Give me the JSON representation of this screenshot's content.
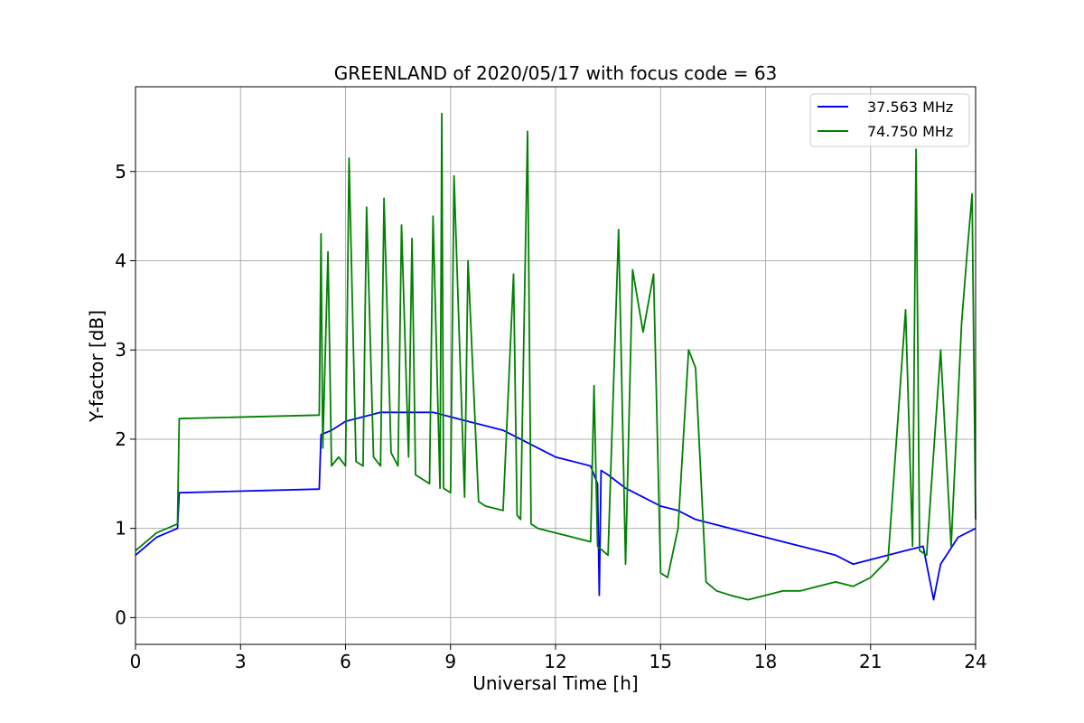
{
  "chart_data": {
    "type": "line",
    "title": "GREENLAND of 2020/05/17 with focus code = 63",
    "xlabel": "Universal Time [h]",
    "ylabel": "Y-factor [dB]",
    "xlim": [
      0,
      24
    ],
    "ylim": [
      -0.3,
      5.95
    ],
    "xticks": [
      0,
      3,
      6,
      9,
      12,
      15,
      18,
      21,
      24
    ],
    "yticks": [
      0,
      1,
      2,
      3,
      4,
      5
    ],
    "grid": true,
    "legend_position": "top-right",
    "series": [
      {
        "name": "37.563 MHz",
        "color": "#0000ff",
        "x": [
          0,
          0.3,
          0.6,
          0.9,
          1.2,
          1.25,
          5.25,
          5.3,
          5.6,
          6.0,
          6.5,
          7.0,
          7.5,
          8.0,
          8.5,
          9.0,
          9.5,
          10.0,
          10.5,
          11.0,
          11.5,
          12.0,
          12.5,
          13.0,
          13.2,
          13.25,
          13.3,
          13.5,
          14.0,
          14.5,
          15.0,
          15.5,
          16.0,
          16.5,
          17.0,
          17.5,
          18.0,
          18.5,
          19.0,
          19.5,
          20.0,
          20.5,
          21.0,
          21.5,
          22.0,
          22.5,
          22.8,
          23.0,
          23.5,
          24.0
        ],
        "y": [
          0.7,
          0.8,
          0.9,
          0.95,
          1.0,
          1.4,
          1.44,
          2.05,
          2.1,
          2.2,
          2.25,
          2.3,
          2.3,
          2.3,
          2.3,
          2.25,
          2.2,
          2.15,
          2.1,
          2.0,
          1.9,
          1.8,
          1.75,
          1.7,
          1.5,
          0.25,
          1.65,
          1.6,
          1.45,
          1.35,
          1.25,
          1.2,
          1.1,
          1.05,
          1.0,
          0.95,
          0.9,
          0.85,
          0.8,
          0.75,
          0.7,
          0.6,
          0.65,
          0.7,
          0.75,
          0.8,
          0.2,
          0.6,
          0.9,
          1.0
        ]
      },
      {
        "name": "74.750 MHz",
        "color": "#008000",
        "x": [
          0,
          0.3,
          0.6,
          0.9,
          1.2,
          1.25,
          5.25,
          5.3,
          5.35,
          5.5,
          5.6,
          5.8,
          6.0,
          6.1,
          6.3,
          6.5,
          6.6,
          6.8,
          7.0,
          7.1,
          7.3,
          7.5,
          7.6,
          7.8,
          7.9,
          8.0,
          8.4,
          8.5,
          8.7,
          8.75,
          8.8,
          9.0,
          9.1,
          9.4,
          9.5,
          9.8,
          10.0,
          10.5,
          10.8,
          10.9,
          11.0,
          11.2,
          11.3,
          11.5,
          12.0,
          12.5,
          13.0,
          13.1,
          13.2,
          13.5,
          13.8,
          14.0,
          14.2,
          14.5,
          14.8,
          15.0,
          15.2,
          15.5,
          15.8,
          16.0,
          16.3,
          16.6,
          17.0,
          17.5,
          18.0,
          18.5,
          19.0,
          19.5,
          20.0,
          20.5,
          21.0,
          21.5,
          22.0,
          22.2,
          22.3,
          22.4,
          22.6,
          23.0,
          23.3,
          23.6,
          23.75,
          23.9,
          24.0
        ],
        "y": [
          0.75,
          0.85,
          0.95,
          1.0,
          1.05,
          2.23,
          2.27,
          4.3,
          1.9,
          4.1,
          1.7,
          1.8,
          1.7,
          5.15,
          1.75,
          1.7,
          4.6,
          1.8,
          1.7,
          4.7,
          1.85,
          1.7,
          4.4,
          1.8,
          4.25,
          1.6,
          1.5,
          4.5,
          1.45,
          5.65,
          1.45,
          1.4,
          4.95,
          1.35,
          4.0,
          1.3,
          1.25,
          1.2,
          3.85,
          1.15,
          1.1,
          5.45,
          1.05,
          1.0,
          0.95,
          0.9,
          0.85,
          2.6,
          0.8,
          0.7,
          4.35,
          0.6,
          3.9,
          3.2,
          3.85,
          0.5,
          0.45,
          1.0,
          3.0,
          2.8,
          0.4,
          0.3,
          0.25,
          0.2,
          0.25,
          0.3,
          0.3,
          0.35,
          0.4,
          0.35,
          0.45,
          0.65,
          3.45,
          0.8,
          5.25,
          0.75,
          0.7,
          3.0,
          0.8,
          3.3,
          4.05,
          4.75,
          1.1
        ]
      }
    ]
  }
}
